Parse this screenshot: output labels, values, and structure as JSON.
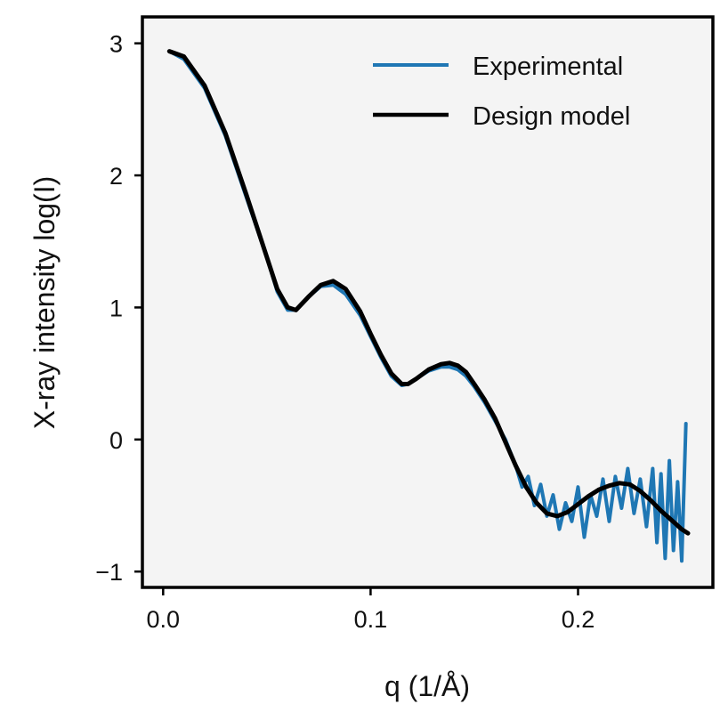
{
  "chart_data": {
    "type": "line",
    "title": "",
    "xlabel": "q (1/Å)",
    "ylabel": "X-ray intensity log(I)",
    "xlim": [
      -0.01,
      0.265
    ],
    "ylim": [
      -1.12,
      3.2
    ],
    "xticks": [
      0.0,
      0.1,
      0.2
    ],
    "xtick_labels": [
      "0.0",
      "0.1",
      "0.2"
    ],
    "yticks": [
      -1,
      0,
      1,
      2,
      3
    ],
    "ytick_labels": [
      "−1",
      "0",
      "1",
      "2",
      "3"
    ],
    "grid": false,
    "legend_position": "top-right",
    "plot_background": "#f4f4f4",
    "series": [
      {
        "name": "Experimental",
        "color": "#1f77b4",
        "x": [
          0.003,
          0.01,
          0.02,
          0.03,
          0.04,
          0.05,
          0.055,
          0.06,
          0.064,
          0.07,
          0.076,
          0.082,
          0.088,
          0.095,
          0.1,
          0.105,
          0.11,
          0.115,
          0.118,
          0.122,
          0.128,
          0.134,
          0.138,
          0.142,
          0.146,
          0.15,
          0.155,
          0.16,
          0.165,
          0.17,
          0.173,
          0.176,
          0.179,
          0.182,
          0.185,
          0.188,
          0.191,
          0.194,
          0.197,
          0.2,
          0.203,
          0.206,
          0.209,
          0.212,
          0.215,
          0.218,
          0.221,
          0.224,
          0.227,
          0.23,
          0.233,
          0.236,
          0.238,
          0.24,
          0.242,
          0.244,
          0.246,
          0.248,
          0.25,
          0.252
        ],
        "y": [
          2.94,
          2.88,
          2.66,
          2.3,
          1.84,
          1.38,
          1.12,
          0.98,
          0.98,
          1.08,
          1.16,
          1.17,
          1.1,
          0.94,
          0.78,
          0.62,
          0.48,
          0.41,
          0.42,
          0.46,
          0.52,
          0.55,
          0.55,
          0.53,
          0.48,
          0.4,
          0.28,
          0.14,
          0.0,
          -0.2,
          -0.36,
          -0.28,
          -0.5,
          -0.34,
          -0.58,
          -0.42,
          -0.68,
          -0.48,
          -0.62,
          -0.36,
          -0.74,
          -0.42,
          -0.58,
          -0.3,
          -0.62,
          -0.28,
          -0.52,
          -0.22,
          -0.56,
          -0.3,
          -0.66,
          -0.22,
          -0.78,
          -0.26,
          -0.9,
          -0.16,
          -0.84,
          -0.32,
          -0.92,
          0.12
        ]
      },
      {
        "name": "Design model",
        "color": "#000000",
        "x": [
          0.003,
          0.01,
          0.02,
          0.03,
          0.04,
          0.05,
          0.055,
          0.06,
          0.064,
          0.07,
          0.076,
          0.082,
          0.088,
          0.095,
          0.1,
          0.105,
          0.11,
          0.115,
          0.118,
          0.122,
          0.128,
          0.134,
          0.138,
          0.142,
          0.146,
          0.15,
          0.155,
          0.16,
          0.165,
          0.17,
          0.175,
          0.18,
          0.185,
          0.19,
          0.195,
          0.2,
          0.205,
          0.21,
          0.215,
          0.22,
          0.225,
          0.23,
          0.235,
          0.24,
          0.245,
          0.25,
          0.253
        ],
        "y": [
          2.94,
          2.9,
          2.68,
          2.32,
          1.86,
          1.38,
          1.14,
          1.0,
          0.98,
          1.08,
          1.17,
          1.2,
          1.14,
          0.97,
          0.8,
          0.64,
          0.5,
          0.42,
          0.42,
          0.46,
          0.53,
          0.57,
          0.58,
          0.56,
          0.51,
          0.42,
          0.3,
          0.16,
          -0.02,
          -0.2,
          -0.36,
          -0.48,
          -0.56,
          -0.58,
          -0.55,
          -0.49,
          -0.43,
          -0.38,
          -0.35,
          -0.33,
          -0.34,
          -0.39,
          -0.46,
          -0.54,
          -0.61,
          -0.68,
          -0.71
        ]
      }
    ]
  }
}
